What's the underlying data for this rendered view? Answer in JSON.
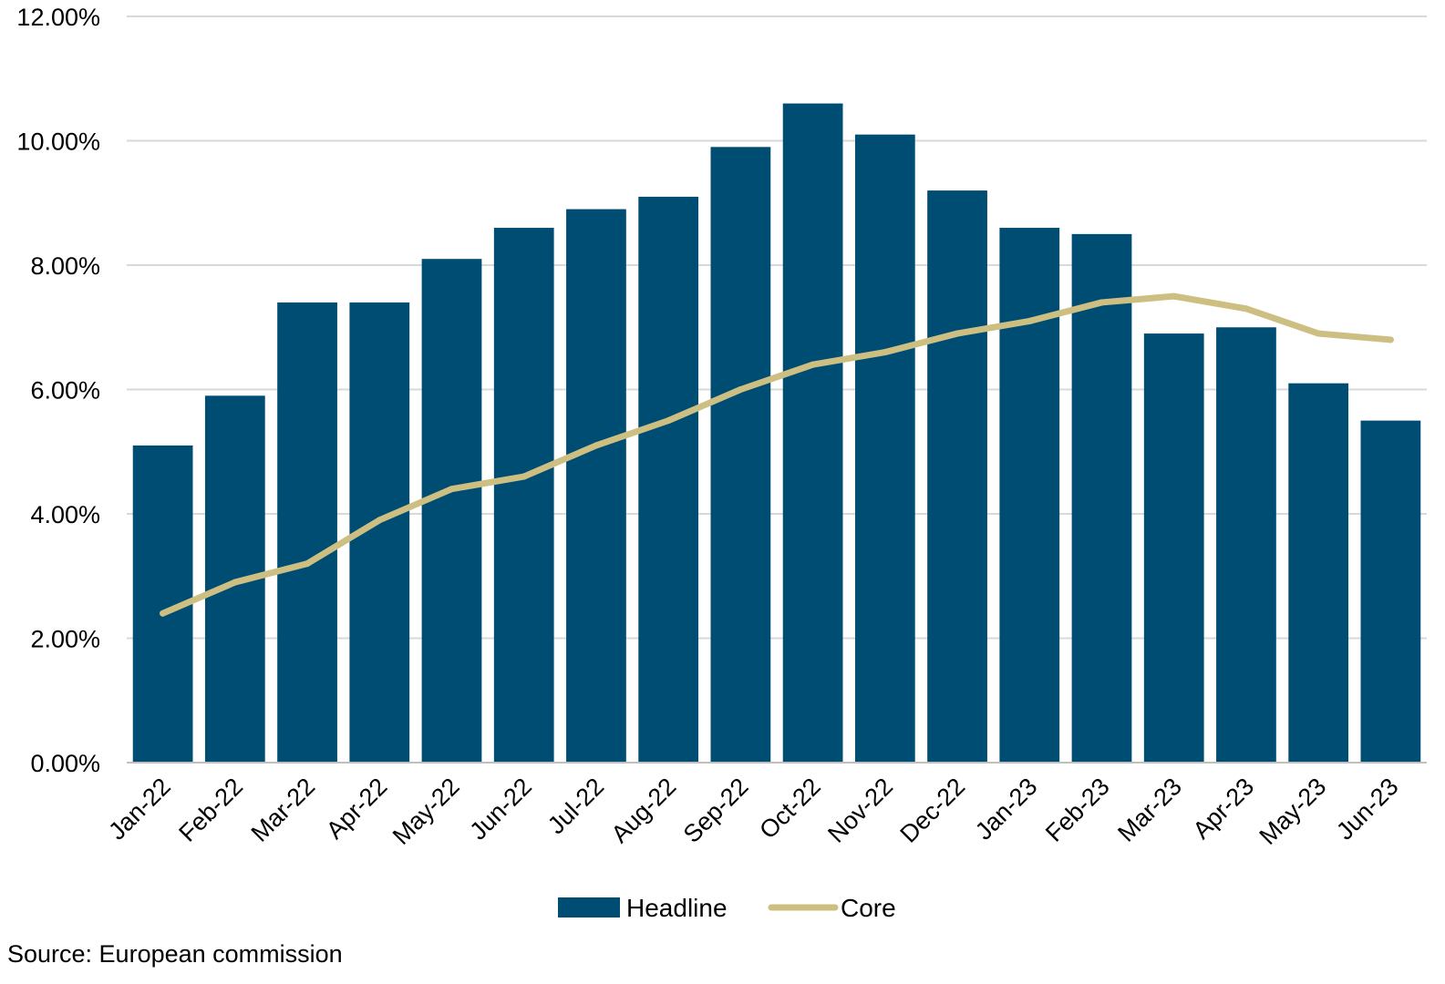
{
  "chart_data": {
    "type": "bar",
    "categories": [
      "Jan-22",
      "Feb-22",
      "Mar-22",
      "Apr-22",
      "May-22",
      "Jun-22",
      "Jul-22",
      "Aug-22",
      "Sep-22",
      "Oct-22",
      "Nov-22",
      "Dec-22",
      "Jan-23",
      "Feb-23",
      "Mar-23",
      "Apr-23",
      "May-23",
      "Jun-23"
    ],
    "series": [
      {
        "name": "Headline",
        "type": "bar",
        "color": "#004d73",
        "values": [
          5.1,
          5.9,
          7.4,
          7.4,
          8.1,
          8.6,
          8.9,
          9.1,
          9.9,
          10.6,
          10.1,
          9.2,
          8.6,
          8.5,
          6.9,
          7.0,
          6.1,
          5.5
        ]
      },
      {
        "name": "Core",
        "type": "line",
        "color": "#cdbf82",
        "values": [
          2.4,
          2.9,
          3.2,
          3.9,
          4.4,
          4.6,
          5.1,
          5.5,
          6.0,
          6.4,
          6.6,
          6.9,
          7.1,
          7.4,
          7.5,
          7.3,
          6.9,
          6.8
        ]
      }
    ],
    "ylim": [
      0,
      12
    ],
    "yticks": [
      0,
      2,
      4,
      6,
      8,
      10,
      12
    ],
    "ytick_labels": [
      "0.00%",
      "2.00%",
      "4.00%",
      "6.00%",
      "8.00%",
      "10.00%",
      "12.00%"
    ],
    "grid": true,
    "legend_position": "bottom-center",
    "title": "",
    "xlabel": "",
    "ylabel": ""
  },
  "source_note": "Source: European commission"
}
